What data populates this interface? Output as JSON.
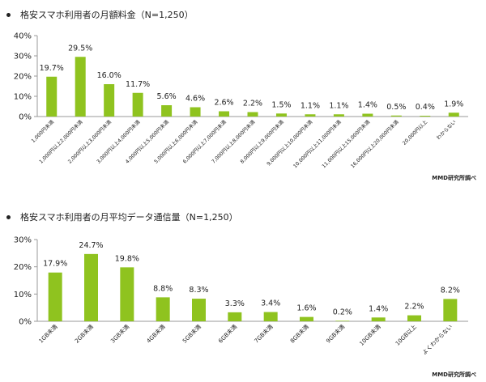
{
  "colors": {
    "bar": "#8fc31f",
    "axis": "#999999",
    "text": "#222222"
  },
  "chart_data": [
    {
      "type": "bar",
      "title": "格安スマホ利用者の月額料金（N=1,250）",
      "ylim": [
        0,
        40
      ],
      "yticks": [
        "0%",
        "10%",
        "20%",
        "30%",
        "40%"
      ],
      "ytick_values": [
        0,
        10,
        20,
        30,
        40
      ],
      "grid": false,
      "categories": [
        "1,000円未満",
        "1,000円以上2,000円未満",
        "2,000円以上3,000円未満",
        "3,000円以上4,000円未満",
        "4,000円以上5,000円未満",
        "5,000円以上6,000円未満",
        "6,000円以上7,000円未満",
        "7,000円以上8,000円未満",
        "8,000円以上9,000円未満",
        "9,000円以上10,000円未満",
        "10,000円以上11,000円未満",
        "11,000円以上15,000円未満",
        "16,000円以上20,000円未満",
        "20,000円以上",
        "わからない"
      ],
      "values": [
        19.7,
        29.5,
        16.0,
        11.7,
        5.6,
        4.6,
        2.6,
        2.2,
        1.5,
        1.1,
        1.1,
        1.4,
        0.5,
        0.4,
        1.9
      ],
      "value_labels": [
        "19.7%",
        "29.5%",
        "16.0%",
        "11.7%",
        "5.6%",
        "4.6%",
        "2.6%",
        "2.2%",
        "1.5%",
        "1.1%",
        "1.1%",
        "1.4%",
        "0.5%",
        "0.4%",
        "1.9%"
      ],
      "source": "MMD研究所調べ"
    },
    {
      "type": "bar",
      "title": "格安スマホ利用者の月平均データ通信量（N=1,250）",
      "ylim": [
        0,
        30
      ],
      "yticks": [
        "0%",
        "10%",
        "20%",
        "30%"
      ],
      "ytick_values": [
        0,
        10,
        20,
        30
      ],
      "grid": false,
      "categories": [
        "1GB未満",
        "2GB未満",
        "3GB未満",
        "4GB未満",
        "5GB未満",
        "6GB未満",
        "7GB未満",
        "8GB未満",
        "9GB未満",
        "10GB未満",
        "10GB以上",
        "よくわからない"
      ],
      "values": [
        17.9,
        24.7,
        19.8,
        8.8,
        8.3,
        3.3,
        3.4,
        1.6,
        0.2,
        1.4,
        2.2,
        8.2
      ],
      "value_labels": [
        "17.9%",
        "24.7%",
        "19.8%",
        "8.8%",
        "8.3%",
        "3.3%",
        "3.4%",
        "1.6%",
        "0.2%",
        "1.4%",
        "2.2%",
        "8.2%"
      ],
      "source": "MMD研究所調べ"
    }
  ]
}
